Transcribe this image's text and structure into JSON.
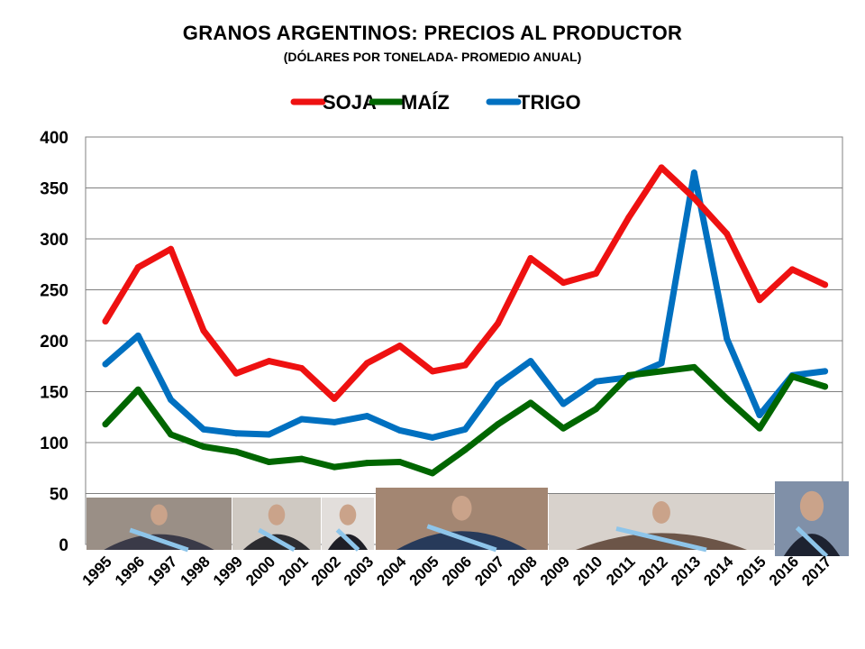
{
  "chart_data": {
    "type": "line",
    "title": "GRANOS ARGENTINOS: PRECIOS  AL PRODUCTOR",
    "subtitle": "(DÓLARES POR TONELADA- PROMEDIO ANUAL)",
    "xlabel": "",
    "ylabel": "",
    "categories": [
      "1995",
      "1996",
      "1997",
      "1998",
      "1999",
      "2000",
      "2001",
      "2002",
      "2003",
      "2004",
      "2005",
      "2006",
      "2007",
      "2008",
      "2009",
      "2010",
      "2011",
      "2012",
      "2013",
      "2014",
      "2015",
      "2016",
      "2017"
    ],
    "ylim": [
      0,
      400
    ],
    "yticks": [
      0,
      50,
      100,
      150,
      200,
      250,
      300,
      350,
      400
    ],
    "grid": true,
    "legend_position": "top",
    "series": [
      {
        "name": "SOJA",
        "color": "#ee1111",
        "values": [
          219,
          272,
          290,
          210,
          168,
          180,
          173,
          143,
          178,
          195,
          170,
          176,
          217,
          281,
          257,
          266,
          321,
          370,
          340,
          305,
          240,
          270,
          255
        ]
      },
      {
        "name": "MAÍZ",
        "color": "#006600",
        "values": [
          118,
          152,
          108,
          96,
          91,
          81,
          84,
          76,
          80,
          81,
          70,
          93,
          118,
          139,
          114,
          133,
          166,
          170,
          174,
          143,
          114,
          165,
          155
        ]
      },
      {
        "name": "TRIGO",
        "color": "#0070c0",
        "values": [
          177,
          205,
          142,
          113,
          109,
          108,
          123,
          120,
          126,
          112,
          105,
          113,
          157,
          180,
          138,
          160,
          164,
          178,
          365,
          202,
          127,
          166,
          170
        ]
      }
    ]
  }
}
